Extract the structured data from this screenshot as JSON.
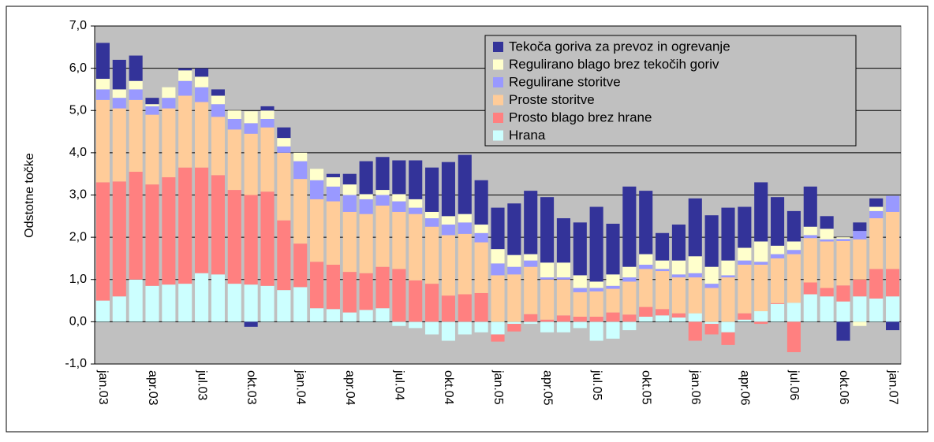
{
  "chart_data": {
    "type": "stacked_bar",
    "y_axis_label": "Odstotne točke",
    "categories": [
      "jan.03",
      null,
      null,
      "apr.03",
      null,
      null,
      "jul.03",
      null,
      null,
      "okt.03",
      null,
      null,
      "jan.04",
      null,
      null,
      "apr.04",
      null,
      null,
      "jul.04",
      null,
      null,
      "okt.04",
      null,
      null,
      "jan.05",
      null,
      null,
      "apr.05",
      null,
      null,
      "jul.05",
      null,
      null,
      "okt.05",
      null,
      null,
      "jan.06",
      null,
      null,
      "apr.06",
      null,
      null,
      "jul.06",
      null,
      null,
      "okt.06",
      null,
      null,
      "jan.07"
    ],
    "ylim": [
      -1,
      7
    ],
    "yticks": [
      {
        "value": -1,
        "label": "-1,0"
      },
      {
        "value": 0,
        "label": "0,0"
      },
      {
        "value": 1,
        "label": "1,0"
      },
      {
        "value": 2,
        "label": "2,0"
      },
      {
        "value": 3,
        "label": "3,0"
      },
      {
        "value": 4,
        "label": "4,0"
      },
      {
        "value": 5,
        "label": "5,0"
      },
      {
        "value": 6,
        "label": "6,0"
      },
      {
        "value": 7,
        "label": "7,0"
      }
    ],
    "grid": true,
    "legend": "top-right",
    "series": [
      {
        "name": "Hrana",
        "color": "#ccffff",
        "values": [
          0.5,
          0.6,
          1.0,
          0.85,
          0.88,
          0.9,
          1.15,
          1.12,
          0.9,
          0.88,
          0.85,
          0.75,
          0.82,
          0.32,
          0.3,
          0.22,
          0.28,
          0.32,
          -0.1,
          -0.15,
          -0.3,
          -0.45,
          -0.3,
          -0.25,
          -0.3,
          -0.05,
          -0.05,
          -0.25,
          -0.25,
          -0.15,
          -0.45,
          -0.4,
          -0.2,
          0.12,
          0.15,
          0.1,
          0.2,
          -0.05,
          -0.25,
          0.05,
          0.25,
          0.42,
          0.45,
          0.65,
          0.6,
          0.48,
          0.6,
          0.55,
          0.6
        ]
      },
      {
        "name": "Prosto blago brez hrane",
        "color": "#ff8080",
        "values": [
          2.8,
          2.72,
          2.55,
          2.4,
          2.54,
          2.75,
          2.5,
          2.35,
          2.22,
          2.12,
          2.23,
          1.65,
          1.03,
          1.1,
          1.05,
          0.96,
          0.87,
          0.98,
          1.25,
          0.98,
          0.9,
          0.62,
          0.65,
          0.68,
          -0.17,
          -0.18,
          0.18,
          0.05,
          0.15,
          0.12,
          0.12,
          0.22,
          0.17,
          0.23,
          0.15,
          0.1,
          -0.45,
          -0.25,
          -0.3,
          0.15,
          -0.05,
          0.02,
          -0.72,
          0.28,
          0.2,
          0.38,
          0.4,
          0.7,
          0.65
        ]
      },
      {
        "name": "Proste storitve",
        "color": "#ffcc99",
        "values": [
          1.95,
          1.73,
          1.7,
          1.65,
          1.63,
          1.7,
          1.55,
          1.38,
          1.43,
          1.45,
          1.52,
          1.6,
          1.53,
          1.48,
          1.5,
          1.42,
          1.4,
          1.45,
          1.35,
          1.57,
          1.35,
          1.43,
          1.43,
          1.2,
          1.1,
          1.12,
          1.12,
          0.95,
          0.85,
          0.58,
          0.6,
          0.56,
          0.78,
          0.9,
          0.9,
          0.85,
          0.85,
          0.8,
          1.05,
          1.15,
          1.1,
          1.06,
          1.15,
          1.05,
          1.1,
          1.05,
          0.95,
          1.2,
          1.35
        ]
      },
      {
        "name": "Regulirane storitve",
        "color": "#9999ff",
        "values": [
          0.25,
          0.25,
          0.25,
          0.2,
          0.25,
          0.35,
          0.35,
          0.3,
          0.25,
          0.25,
          0.2,
          0.15,
          0.42,
          0.45,
          0.35,
          0.4,
          0.35,
          0.25,
          0.25,
          0.15,
          0.2,
          0.25,
          0.27,
          0.22,
          0.28,
          0.18,
          0.15,
          0.05,
          0.05,
          0.1,
          0.08,
          0.07,
          0.1,
          0.1,
          0.05,
          0.07,
          0.1,
          0.1,
          0.05,
          0.1,
          0.07,
          0.1,
          0.1,
          0.07,
          0.05,
          0.05,
          0.2,
          0.17,
          0.38
        ]
      },
      {
        "name": "Regulirano blago brez tekočih goriv",
        "color": "#ffffcc",
        "values": [
          0.25,
          0.2,
          0.2,
          0.05,
          0.25,
          0.25,
          0.25,
          0.2,
          0.2,
          0.28,
          0.2,
          0.2,
          0.2,
          0.27,
          0.22,
          0.25,
          0.12,
          0.12,
          0.17,
          0.2,
          0.15,
          0.2,
          0.2,
          0.2,
          0.34,
          0.28,
          0.15,
          0.35,
          0.35,
          0.3,
          0.15,
          0.27,
          0.25,
          0.25,
          0.2,
          0.33,
          0.4,
          0.4,
          0.35,
          0.3,
          0.48,
          0.2,
          0.2,
          0.2,
          0.25,
          0.04,
          -0.1,
          0.1,
          0
        ]
      },
      {
        "name": "Tekoča goriva za prevoz in ogrevanje",
        "color": "#333399",
        "values": [
          0.85,
          0.7,
          0.6,
          0.15,
          0,
          0.05,
          0.2,
          0.15,
          0,
          -0.12,
          0.1,
          0.25,
          0,
          0,
          0.08,
          0.25,
          0.78,
          0.78,
          0.8,
          0.92,
          1.05,
          1.28,
          1.4,
          1.05,
          0.98,
          1.22,
          1.5,
          1.55,
          1.05,
          1.25,
          1.77,
          1.2,
          1.9,
          1.5,
          0.65,
          0.85,
          1.37,
          1.22,
          1.25,
          0.97,
          1.4,
          1.15,
          0.72,
          0.95,
          0.3,
          -0.45,
          0.2,
          0.2,
          -0.2
        ]
      }
    ]
  }
}
